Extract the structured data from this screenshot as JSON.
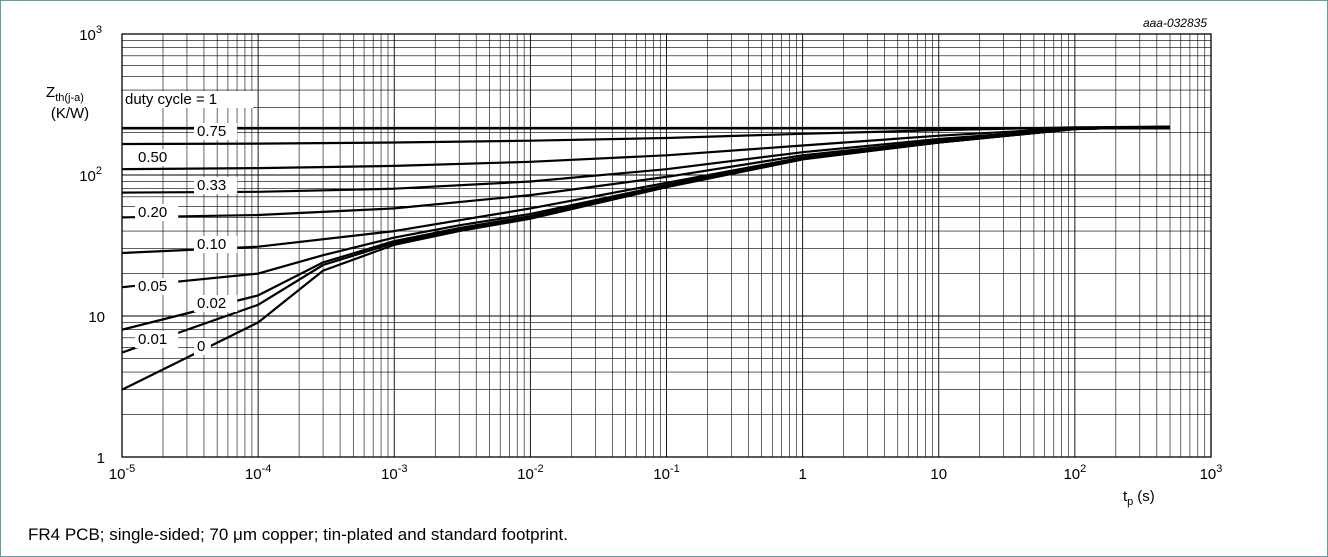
{
  "chart_data": {
    "type": "line",
    "figure_id": "aaa-032835",
    "xscale": "log",
    "yscale": "log",
    "xlim": [
      1e-05,
      1000
    ],
    "ylim": [
      1,
      1000
    ],
    "grid": true,
    "xlabel_main": "t",
    "xlabel_sub": "p",
    "xlabel_unit": "(s)",
    "ylabel_main": "Z",
    "ylabel_sub": "th(j-a)",
    "ylabel_unit": "(K/W)",
    "x_ticks": [
      {
        "base": "10",
        "exp": "-5"
      },
      {
        "base": "10",
        "exp": "-4"
      },
      {
        "base": "10",
        "exp": "-3"
      },
      {
        "base": "10",
        "exp": "-2"
      },
      {
        "base": "10",
        "exp": "-1"
      },
      {
        "base": "1",
        "exp": ""
      },
      {
        "base": "10",
        "exp": ""
      },
      {
        "base": "10",
        "exp": "2"
      },
      {
        "base": "10",
        "exp": "3"
      }
    ],
    "y_ticks": [
      {
        "base": "1",
        "exp": ""
      },
      {
        "base": "10",
        "exp": ""
      },
      {
        "base": "10",
        "exp": "2"
      },
      {
        "base": "10",
        "exp": "3"
      }
    ],
    "series": [
      {
        "name": "duty cycle = 1",
        "x": [
          1e-05,
          500
        ],
        "y": [
          220,
          220
        ]
      },
      {
        "name": "0.75",
        "x": [
          1e-05,
          0.0001,
          0.001,
          0.01,
          0.1,
          1,
          10,
          100,
          500
        ],
        "y": [
          166,
          167,
          170,
          175,
          183,
          196,
          208,
          218,
          220
        ]
      },
      {
        "name": "0.50",
        "x": [
          1e-05,
          0.0001,
          0.001,
          0.01,
          0.1,
          1,
          10,
          100,
          500
        ],
        "y": [
          110,
          112,
          116,
          124,
          138,
          162,
          190,
          215,
          220
        ]
      },
      {
        "name": "0.33",
        "x": [
          1e-05,
          0.0001,
          0.001,
          0.01,
          0.1,
          1,
          10,
          100,
          500
        ],
        "y": [
          75,
          76,
          80,
          90,
          110,
          145,
          180,
          213,
          220
        ]
      },
      {
        "name": "0.20",
        "x": [
          1e-05,
          0.0001,
          0.001,
          0.01,
          0.1,
          1,
          10,
          100,
          500
        ],
        "y": [
          50,
          52,
          58,
          72,
          97,
          138,
          175,
          212,
          220
        ]
      },
      {
        "name": "0.10",
        "x": [
          1e-05,
          0.0001,
          0.001,
          0.01,
          0.1,
          1,
          10,
          100,
          500
        ],
        "y": [
          28,
          31,
          40,
          58,
          88,
          133,
          172,
          212,
          220
        ]
      },
      {
        "name": "0.05",
        "x": [
          1e-05,
          0.0001,
          0.0003,
          0.001,
          0.003,
          0.01,
          0.1,
          1,
          10,
          100,
          500
        ],
        "y": [
          16,
          20,
          27,
          36,
          44,
          53,
          85,
          131,
          171,
          212,
          220
        ]
      },
      {
        "name": "0.02",
        "x": [
          1e-05,
          0.0001,
          0.0003,
          0.001,
          0.003,
          0.01,
          0.1,
          1,
          10,
          100,
          500
        ],
        "y": [
          8,
          14,
          24,
          34,
          42,
          51,
          84,
          130,
          170,
          212,
          220
        ]
      },
      {
        "name": "0.01",
        "x": [
          1e-05,
          0.0001,
          0.0003,
          0.001,
          0.003,
          0.01,
          0.1,
          1,
          10,
          100,
          500
        ],
        "y": [
          5.5,
          12,
          23,
          33,
          41,
          50,
          83,
          130,
          170,
          212,
          220
        ]
      },
      {
        "name": "0",
        "x": [
          1e-05,
          0.0001,
          0.0003,
          0.001,
          0.003,
          0.01,
          0.1,
          1,
          10,
          100,
          500
        ],
        "y": [
          3,
          9,
          21,
          32,
          40,
          49,
          82,
          129,
          170,
          212,
          220
        ]
      }
    ]
  },
  "caption": "FR4 PCB; single-sided; 70 μm copper; tin-plated and standard footprint."
}
